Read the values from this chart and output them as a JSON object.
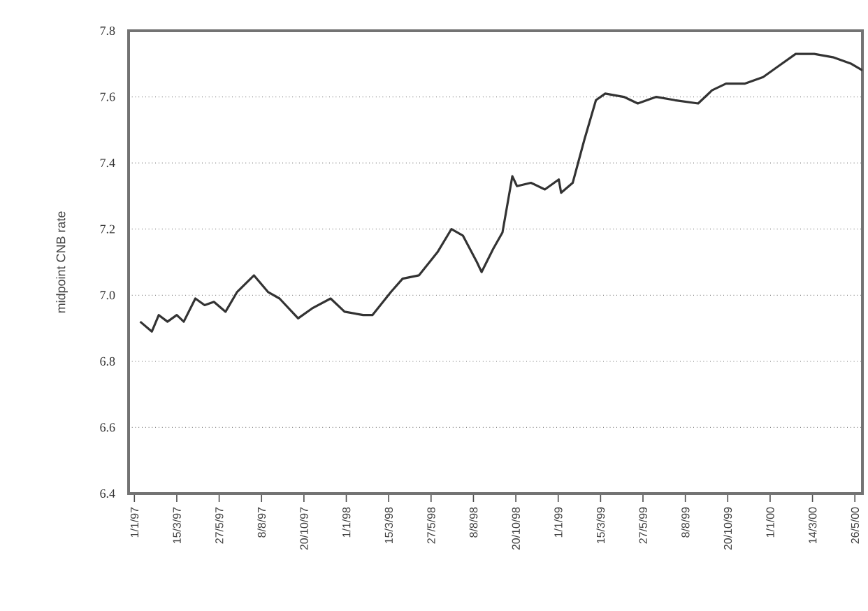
{
  "chart_data": {
    "type": "line",
    "ylabel": "midpoint CNB rate",
    "x": [
      "1997-01-11",
      "1997-01-31",
      "1997-02-12",
      "1997-02-27",
      "1997-03-15",
      "1997-03-27",
      "1997-04-16",
      "1997-05-02",
      "1997-05-18",
      "1997-06-07",
      "1997-06-27",
      "1997-07-26",
      "1997-08-19",
      "1997-09-08",
      "1997-10-10",
      "1997-11-03",
      "1997-12-05",
      "1997-12-29",
      "1998-01-30",
      "1998-02-15",
      "1998-03-19",
      "1998-04-08",
      "1998-05-06",
      "1998-06-07",
      "1998-07-01",
      "1998-07-21",
      "1998-08-14",
      "1998-08-22",
      "1998-09-11",
      "1998-09-27",
      "1998-10-14",
      "1998-10-22",
      "1998-11-15",
      "1998-12-09",
      "1999-01-02",
      "1999-01-06",
      "1999-01-26",
      "1999-02-15",
      "1999-03-07",
      "1999-03-23",
      "1999-04-24",
      "1999-05-18",
      "1999-06-19",
      "1999-07-21",
      "1999-08-30",
      "1999-09-23",
      "1999-10-17",
      "1999-11-18",
      "1999-12-20",
      "2000-01-13",
      "2000-02-14",
      "2000-03-17",
      "2000-04-18",
      "2000-05-20",
      "2000-06-08"
    ],
    "series": [
      {
        "color": "#333333",
        "values": [
          6.92,
          6.89,
          6.94,
          6.92,
          6.94,
          6.92,
          6.99,
          6.97,
          6.98,
          6.95,
          7.01,
          7.06,
          7.01,
          6.99,
          6.93,
          6.96,
          6.99,
          6.95,
          6.94,
          6.94,
          7.01,
          7.05,
          7.06,
          7.13,
          7.2,
          7.18,
          7.1,
          7.07,
          7.14,
          7.19,
          7.36,
          7.33,
          7.34,
          7.32,
          7.35,
          7.31,
          7.34,
          7.47,
          7.59,
          7.61,
          7.6,
          7.58,
          7.6,
          7.59,
          7.58,
          7.62,
          7.64,
          7.64,
          7.66,
          7.69,
          7.73,
          7.73,
          7.72,
          7.7,
          7.68
        ]
      }
    ],
    "xlim": [
      "1996-12-22",
      "2000-06-08"
    ],
    "xticks": [
      {
        "value": "1997-01-01",
        "label": "1/1/97"
      },
      {
        "value": "1997-03-15",
        "label": "15/3/97"
      },
      {
        "value": "1997-05-27",
        "label": "27/5/97"
      },
      {
        "value": "1997-08-08",
        "label": "8/8/97"
      },
      {
        "value": "1997-10-20",
        "label": "20/10/97"
      },
      {
        "value": "1998-01-01",
        "label": "1/1/98"
      },
      {
        "value": "1998-03-15",
        "label": "15/3/98"
      },
      {
        "value": "1998-05-27",
        "label": "27/5/98"
      },
      {
        "value": "1998-08-08",
        "label": "8/8/98"
      },
      {
        "value": "1998-10-20",
        "label": "20/10/98"
      },
      {
        "value": "1999-01-01",
        "label": "1/1/99"
      },
      {
        "value": "1999-03-15",
        "label": "15/3/99"
      },
      {
        "value": "1999-05-27",
        "label": "27/5/99"
      },
      {
        "value": "1999-08-08",
        "label": "8/8/99"
      },
      {
        "value": "1999-10-20",
        "label": "20/10/99"
      },
      {
        "value": "2000-01-01",
        "label": "1/1/00"
      },
      {
        "value": "2000-03-14",
        "label": "14/3/00"
      },
      {
        "value": "2000-05-26",
        "label": "26/5/00"
      }
    ],
    "ylim": [
      6.4,
      7.8
    ],
    "yticks": [
      6.4,
      6.6,
      6.8,
      {
        "value": 7,
        "label": "7.0"
      },
      7.2,
      7.4,
      7.6,
      7.8
    ],
    "grid": "y"
  }
}
